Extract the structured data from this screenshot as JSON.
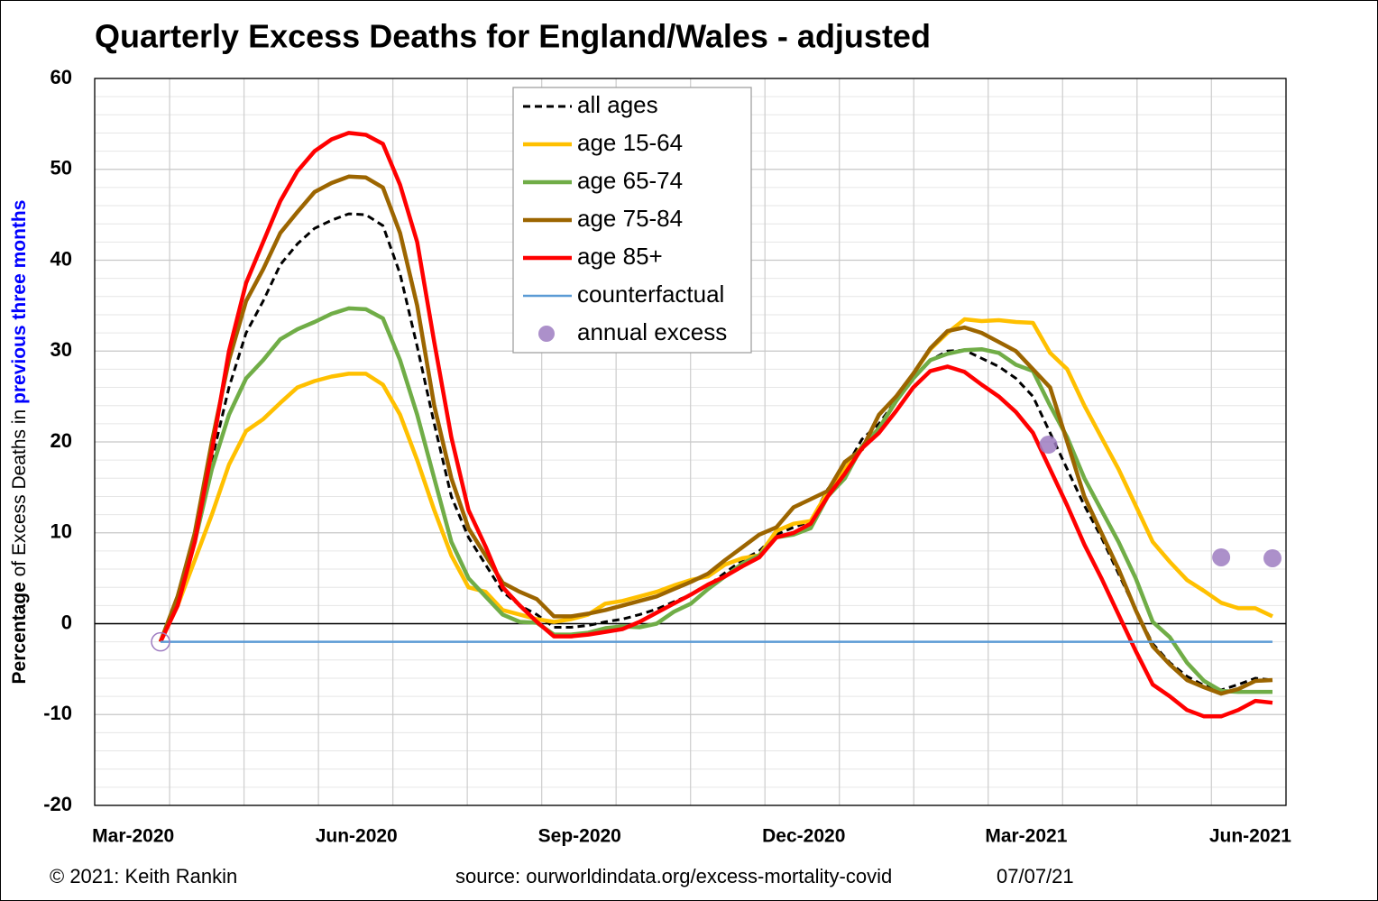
{
  "chart_data": {
    "type": "line",
    "title": "Quarterly Excess Deaths for England/Wales - adjusted",
    "ylabel": [
      "Percentage",
      "of Excess Deaths in",
      "previous three months"
    ],
    "footer": [
      "© 2021: Keith Rankin",
      "source: ourworldindata.org/excess-mortality-covid",
      "07/07/21"
    ],
    "x": [
      0,
      1,
      2,
      3,
      4,
      5,
      6,
      7,
      8,
      9,
      10,
      11,
      12,
      13,
      14,
      15,
      16,
      17,
      18,
      19,
      20,
      21,
      22,
      23,
      24,
      25,
      26,
      27,
      28,
      29,
      30,
      31,
      32,
      33,
      34,
      35,
      36,
      37,
      38,
      39,
      40,
      41,
      42,
      43,
      44,
      45,
      46,
      47,
      48,
      49,
      50,
      51,
      52,
      53,
      54,
      55,
      56,
      57,
      58,
      59,
      60,
      61,
      62,
      63,
      64,
      65
    ],
    "xlim": [
      -3.85,
      65.79
    ],
    "xticks": [
      {
        "value": -1.6,
        "label": "Mar-2020"
      },
      {
        "value": 11.45,
        "label": "Jun-2020"
      },
      {
        "value": 24.5,
        "label": "Sep-2020"
      },
      {
        "value": 37.6,
        "label": "Dec-2020"
      },
      {
        "value": 50.6,
        "label": "Mar-2021"
      },
      {
        "value": 63.7,
        "label": "Jun-2021"
      }
    ],
    "x_gridlines": [
      0.53,
      4.88,
      9.23,
      13.58,
      17.93,
      22.28,
      26.63,
      30.98,
      35.33,
      39.68,
      44.03,
      48.38,
      52.73,
      57.08,
      61.43
    ],
    "ylim": [
      -20,
      60
    ],
    "yticks": [
      -20,
      -10,
      0,
      10,
      20,
      30,
      40,
      50,
      60
    ],
    "y_minor_step": 2,
    "grid": true,
    "legend": "top",
    "series": [
      {
        "name": "all ages",
        "color": "#000000",
        "dash": true,
        "values": [
          -2,
          2.5,
          9,
          18,
          26,
          32,
          35.5,
          39.5,
          41.8,
          43.5,
          44.4,
          45.1,
          45,
          43.8,
          38.5,
          30.5,
          22,
          14,
          9.5,
          6.5,
          3.5,
          2,
          1,
          -0.4,
          -0.4,
          -0.2,
          0.2,
          0.5,
          1,
          1.6,
          2.4,
          3.2,
          4.2,
          5.6,
          7,
          8,
          9.8,
          10.6,
          11.3,
          14.8,
          17,
          20.3,
          22,
          24.6,
          27,
          29,
          30,
          30.1,
          29.2,
          28.3,
          27,
          25,
          21,
          17,
          13,
          9.5,
          5.5,
          1.5,
          -2.2,
          -4.3,
          -5.8,
          -6.8,
          -7.3,
          -6.7,
          -6,
          -6.2
        ]
      },
      {
        "name": "age 15-64",
        "color": "#FFC000",
        "values": [
          -2,
          2,
          7,
          12,
          17.5,
          21.2,
          22.5,
          24.3,
          26,
          26.7,
          27.2,
          27.5,
          27.5,
          26.3,
          23,
          18,
          12.5,
          7.5,
          4,
          3.5,
          1.5,
          1,
          0.5,
          0.2,
          0.5,
          1,
          2.2,
          2.5,
          3,
          3.5,
          4.2,
          4.8,
          5.2,
          6.5,
          7.2,
          7.5,
          10.2,
          11,
          11.3,
          14.5,
          17,
          19.5,
          21.5,
          24.5,
          27.5,
          30.2,
          32,
          33.5,
          33.3,
          33.4,
          33.2,
          33.1,
          29.8,
          28,
          24,
          20.5,
          17,
          13,
          9,
          6.8,
          4.8,
          3.6,
          2.3,
          1.7,
          1.7,
          0.8
        ]
      },
      {
        "name": "age 65-74",
        "color": "#70AD47",
        "values": [
          -2,
          3,
          9,
          17,
          23,
          27,
          29,
          31.3,
          32.4,
          33.2,
          34.1,
          34.7,
          34.6,
          33.6,
          29,
          23,
          16,
          9,
          5,
          3,
          1,
          0.2,
          0.1,
          -1.2,
          -1.2,
          -1,
          -0.5,
          -0.3,
          -0.4,
          0,
          1.3,
          2.2,
          3.8,
          5.2,
          6.6,
          7.5,
          9.5,
          9.8,
          10.5,
          14,
          16,
          19.5,
          21.5,
          24.5,
          27,
          29,
          29.7,
          30.1,
          30.2,
          29.8,
          28.5,
          27.8,
          24,
          20.5,
          16,
          12.5,
          9,
          5,
          0.2,
          -1.5,
          -4.3,
          -6.3,
          -7.4,
          -7.5,
          -7.5,
          -7.5
        ]
      },
      {
        "name": "age 75-84",
        "color": "#9C6500",
        "values": [
          -2,
          3,
          10,
          20,
          29,
          35.5,
          39,
          43,
          45.3,
          47.5,
          48.5,
          49.2,
          49.1,
          48,
          43,
          35,
          24,
          16,
          10.5,
          7.5,
          4.5,
          3.5,
          2.7,
          0.8,
          0.8,
          1.1,
          1.5,
          2,
          2.5,
          3,
          3.8,
          4.6,
          5.5,
          7,
          8.4,
          9.8,
          10.6,
          12.8,
          13.7,
          14.6,
          17.8,
          19.2,
          23,
          25,
          27.5,
          30.3,
          32.2,
          32.6,
          32,
          31,
          30,
          28,
          26,
          20,
          14,
          10,
          6,
          1.5,
          -2.5,
          -4.5,
          -6.2,
          -7,
          -7.7,
          -7.2,
          -6.3,
          -6.2
        ]
      },
      {
        "name": "age 85+",
        "color": "#FF0000",
        "values": [
          -2,
          2,
          9,
          19,
          30,
          37.5,
          42,
          46.5,
          49.8,
          52,
          53.3,
          54,
          53.8,
          52.8,
          48.3,
          42,
          31,
          20.5,
          12.5,
          8.5,
          4,
          2,
          0.2,
          -1.4,
          -1.4,
          -1.2,
          -0.9,
          -0.6,
          0.2,
          1.2,
          2.2,
          3.2,
          4.3,
          5.2,
          6.3,
          7.3,
          9.5,
          10,
          11,
          14,
          16.5,
          19.3,
          21,
          23.4,
          26,
          27.8,
          28.3,
          27.7,
          26.3,
          25,
          23.3,
          21,
          17,
          13,
          8.7,
          5,
          1,
          -3,
          -6.7,
          -8,
          -9.5,
          -10.2,
          -10.2,
          -9.5,
          -8.5,
          -8.7
        ]
      },
      {
        "name": "counterfactual",
        "color": "#5B9BD5",
        "thin": true,
        "x": [
          0,
          65
        ],
        "values": [
          -2,
          -2
        ]
      },
      {
        "name": "annual excess",
        "color": "#9E7CC1",
        "kind": "scatter",
        "hollow": [
          0
        ],
        "x": [
          0,
          51.9,
          62,
          65
        ],
        "values": [
          -2,
          19.7,
          7.3,
          7.2
        ]
      }
    ]
  }
}
